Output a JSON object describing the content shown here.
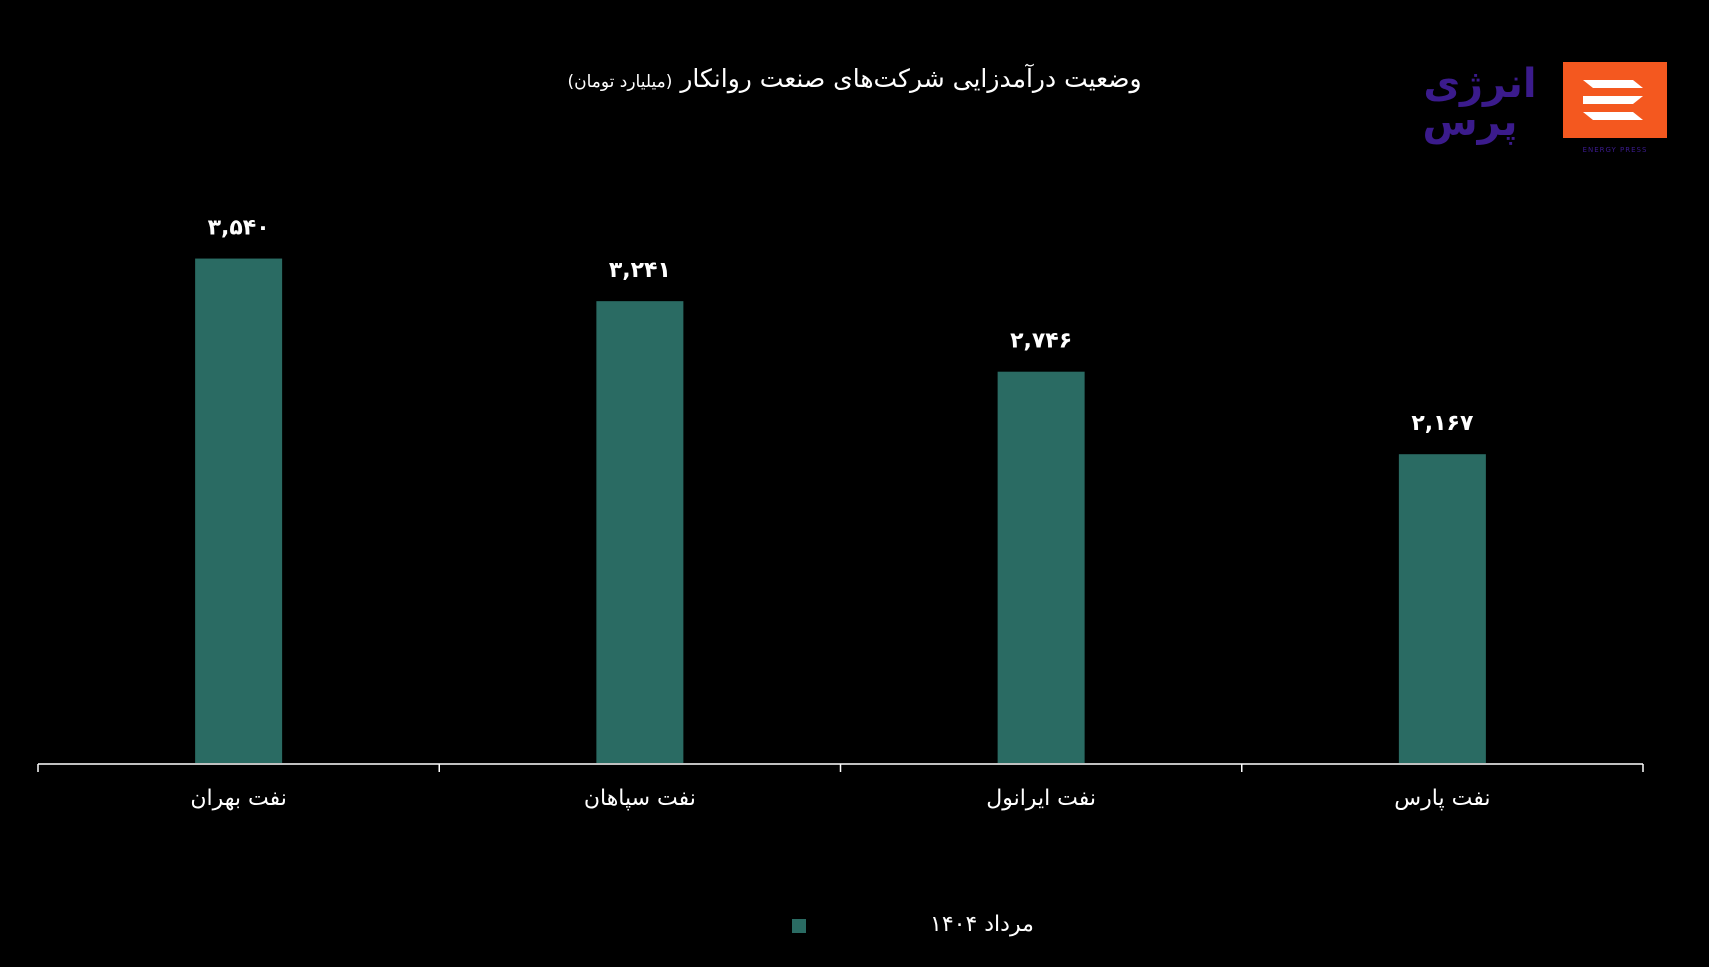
{
  "chart_data": {
    "type": "bar",
    "title": "وضعیت درآمدزایی شرکت‌های صنعت روانکار",
    "subtitle": "(میلیارد تومان)",
    "categories": [
      "نفت بهران",
      "نفت سپاهان",
      "نفت ایرانول",
      "نفت پارس"
    ],
    "series": [
      {
        "name": "مرداد ۱۴۰۴",
        "color": "#2a6b63",
        "values": [
          3540,
          3241,
          2746,
          2167
        ],
        "value_labels": [
          "۳,۵۴۰",
          "۳,۲۴۱",
          "۲,۷۴۶",
          "۲,۱۶۷"
        ]
      }
    ],
    "ylim": [
      0,
      4000
    ],
    "grid": false,
    "legend": "bottom"
  },
  "logo": {
    "line1": "انرژی",
    "line2": "پرس",
    "tagline": "ENERGY PRESS"
  }
}
